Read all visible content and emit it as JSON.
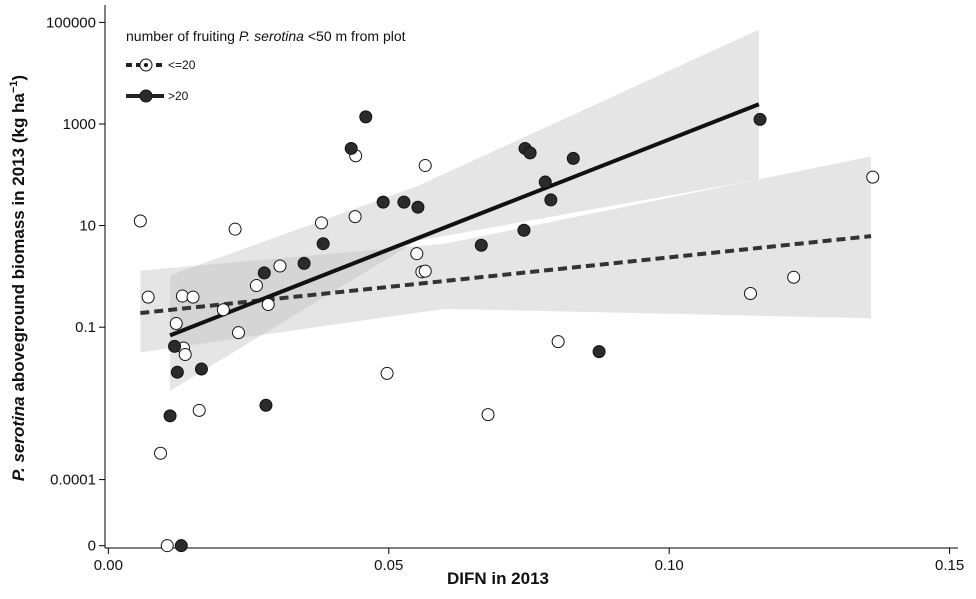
{
  "chart_data": {
    "type": "scatter",
    "log_y": true,
    "x_label": "DIFN in 2013",
    "y_label_parts": [
      "P. serotina",
      " aboveground biomass in 2013 (kg ha",
      "−1",
      ")"
    ],
    "legend_title_parts": [
      "number of fruiting ",
      "P. serotina",
      " <50 m from plot"
    ],
    "xlim": [
      -0.0006,
      0.1515
    ],
    "xticks": [
      {
        "value": 0,
        "label": "0.00"
      },
      0.05,
      {
        "value": 0.1,
        "label": "0.10"
      },
      0.15
    ],
    "ylim": [
      4.5e-06,
      220000
    ],
    "yticks": [
      100000,
      1000,
      10,
      0.1,
      0.0001,
      {
        "value": 5e-06,
        "label": "0"
      }
    ],
    "series": [
      {
        "name": "<=20",
        "color": "#ffffff",
        "dash": true,
        "x": [
          0.0057,
          0.0441,
          0.0565,
          0.044,
          0.038,
          0.0226,
          0.055,
          0.0306,
          0.0264,
          0.0285,
          0.0559,
          0.0565,
          0.0071,
          0.0132,
          0.0151,
          0.0205,
          0.0121,
          0.0232,
          0.0134,
          0.0137,
          0.0497,
          0.0162,
          0.0677,
          0.0802,
          0.1145,
          0.1222,
          0.1363,
          0.0093,
          0.0105
        ],
        "values": [
          12.3,
          237,
          152,
          15,
          11.3,
          8.5,
          2.8,
          1.6,
          0.66,
          0.28,
          1.23,
          1.27,
          0.39,
          0.41,
          0.39,
          0.22,
          0.118,
          0.078,
          0.039,
          0.029,
          0.0123,
          0.0023,
          0.0019,
          0.052,
          0.46,
          0.96,
          90,
          0.00033,
          5e-06
        ],
        "fit": {
          "x": [
            0.0057,
            0.136
          ],
          "values": [
            0.19,
            6.2
          ]
        },
        "band": {
          "x": [
            0.0057,
            0.06,
            0.136
          ],
          "upper": [
            1.3,
            4.4,
            230
          ],
          "lower": [
            0.032,
            0.23,
            0.15
          ]
        }
      },
      {
        "name": ">20",
        "color": "#2b2b2b",
        "dash": false,
        "x": [
          0.0459,
          0.0433,
          0.0743,
          0.0752,
          0.0829,
          0.1162,
          0.0779,
          0.0789,
          0.049,
          0.0527,
          0.0552,
          0.0741,
          0.0665,
          0.0383,
          0.0349,
          0.0278,
          0.0118,
          0.0123,
          0.0166,
          0.0281,
          0.0875,
          0.011,
          0.013
        ],
        "values": [
          1380,
          330,
          330,
          270,
          210,
          1230,
          72,
          32,
          29,
          29,
          23,
          8.1,
          4.1,
          4.4,
          1.8,
          1.17,
          0.042,
          0.013,
          0.015,
          0.0029,
          0.033,
          0.0018,
          5e-06
        ],
        "fit": {
          "x": [
            0.011,
            0.116
          ],
          "values": [
            0.069,
            2450
          ]
        },
        "band": {
          "x": [
            0.011,
            0.055,
            0.116
          ],
          "upper": [
            1.05,
            59,
            72000
          ],
          "lower": [
            0.0056,
            5,
            81
          ]
        }
      }
    ]
  }
}
